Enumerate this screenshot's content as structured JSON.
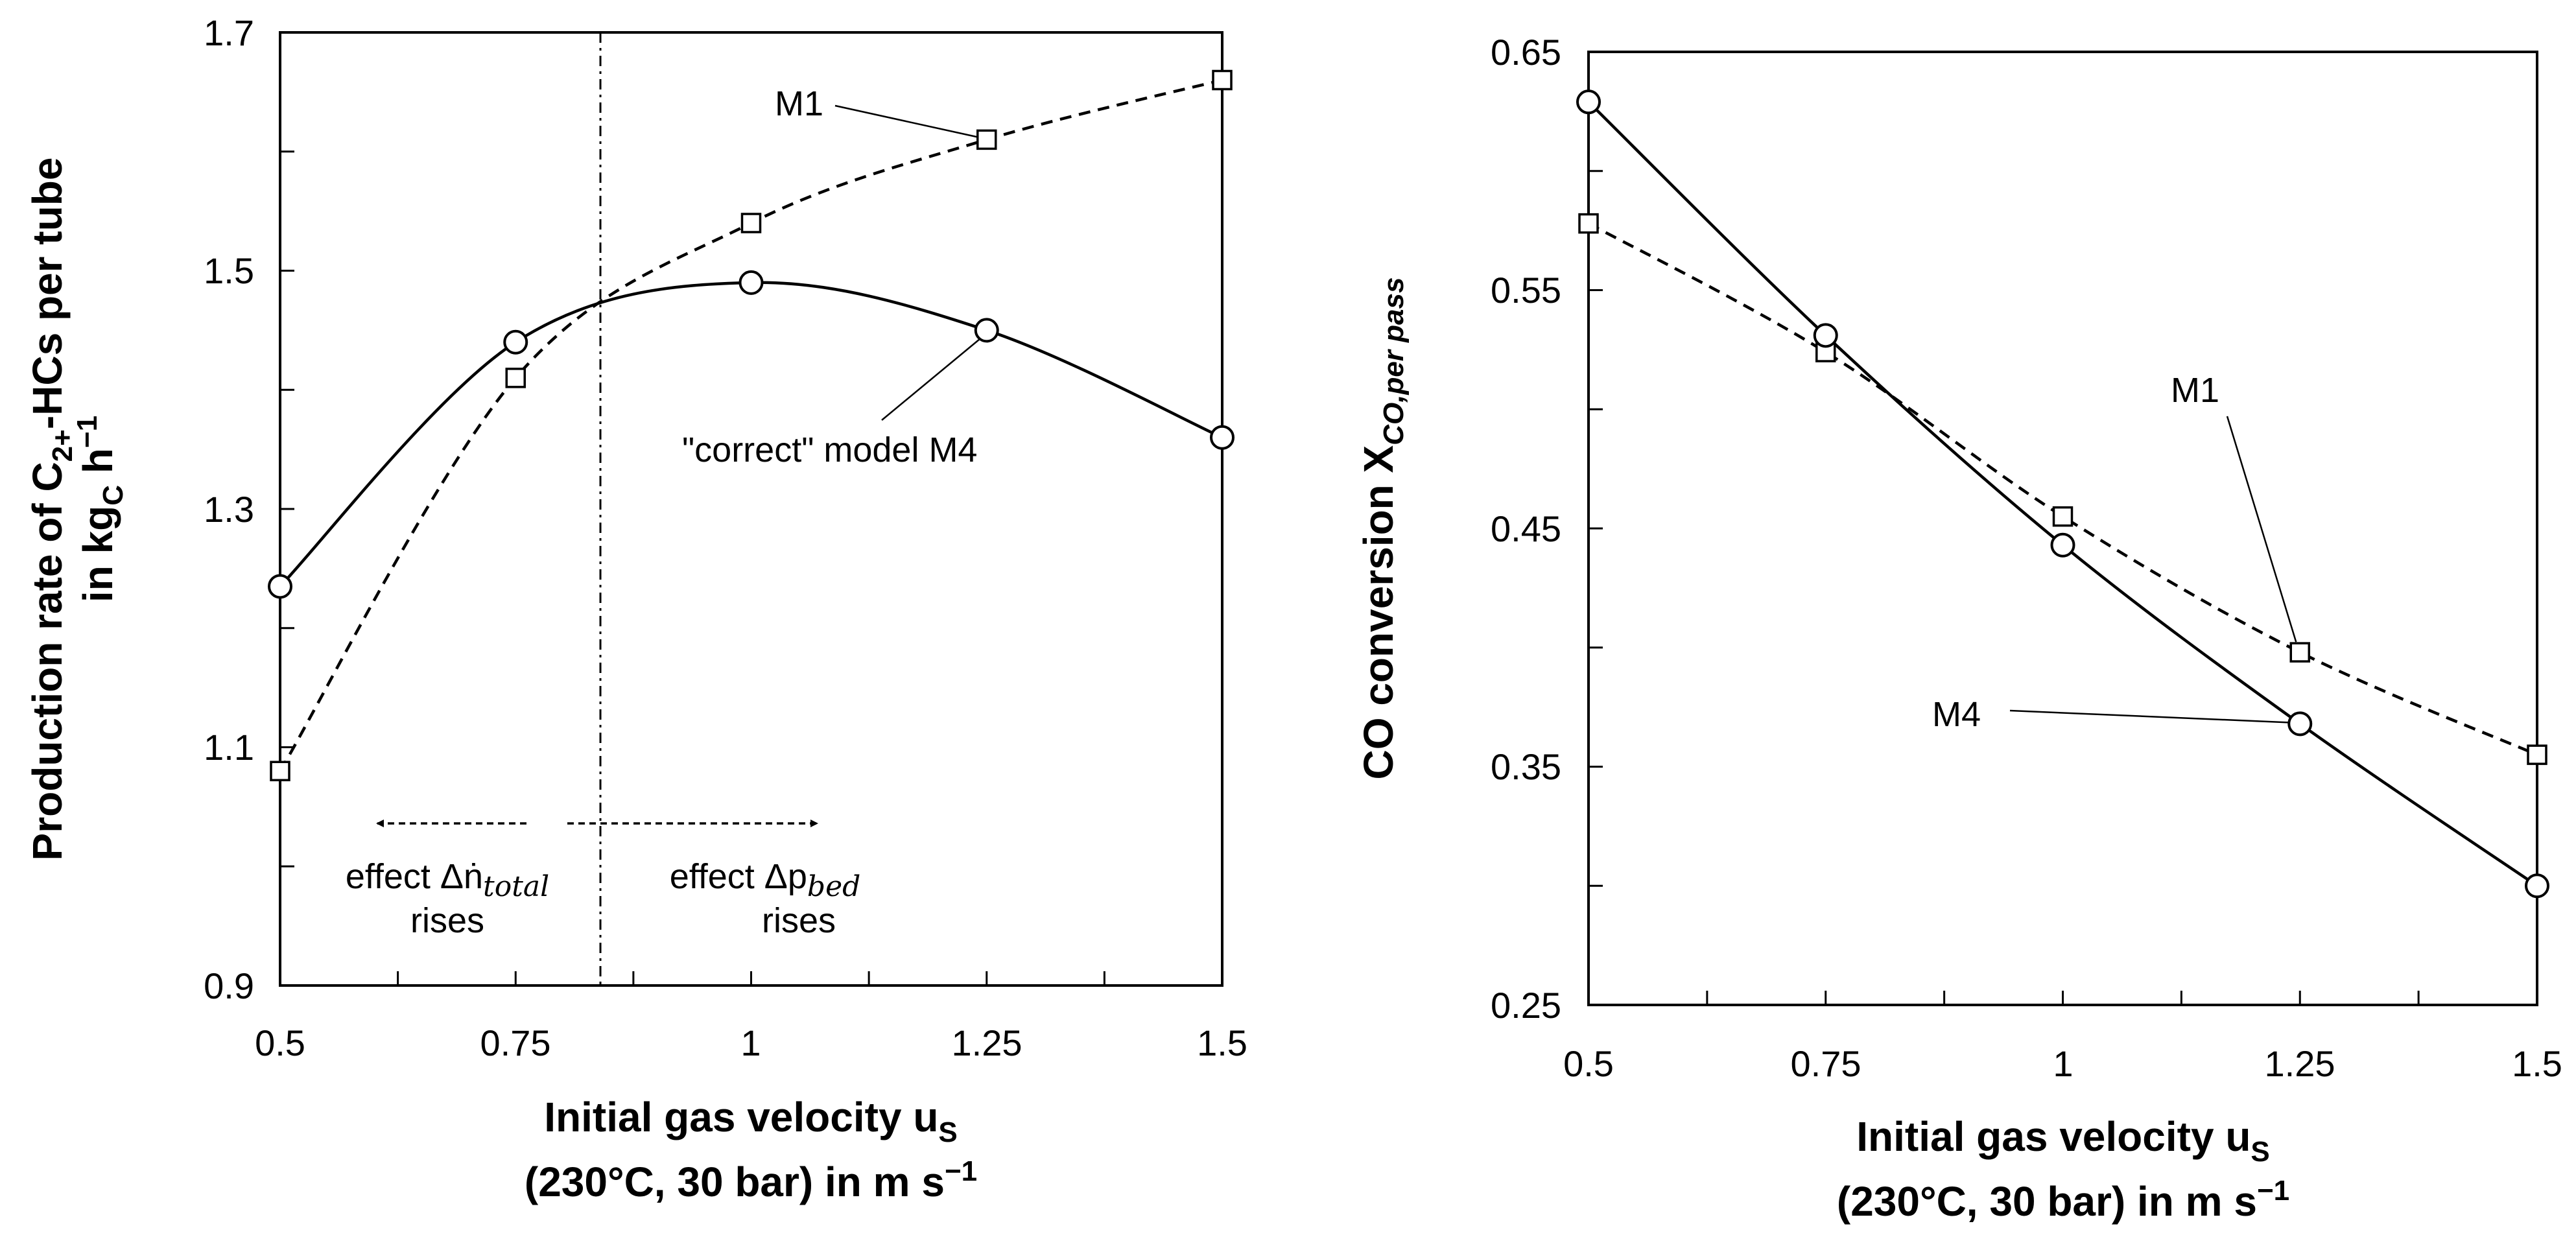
{
  "colors": {
    "line": "#000000",
    "marker_fill": "#ffffff",
    "background": "#ffffff"
  },
  "chart_data": [
    {
      "type": "line",
      "x": [
        0.5,
        0.75,
        1.0,
        1.25,
        1.5
      ],
      "xlim": [
        0.5,
        1.5
      ],
      "ylim": [
        0.9,
        1.7
      ],
      "x_tick_labels": [
        "0.5",
        "0.75",
        "1",
        "1.25",
        "1.5"
      ],
      "y_tick_labels": [
        "0.9",
        "1.1",
        "1.3",
        "1.5",
        "1.7"
      ],
      "xlabel_line1": "Initial gas velocity u",
      "xlabel_sub": "S",
      "xlabel_line2": "(230°C, 30 bar) in m s",
      "xlabel_sup": "−1",
      "ylabel_line1_a": "Production rate of C",
      "ylabel_line1_sub": "2+",
      "ylabel_line1_b": "-HCs per tube",
      "ylabel_line2_a": "in kg",
      "ylabel_line2_sub": "C",
      "ylabel_line2_b": " h",
      "ylabel_line2_sup": "−1",
      "series": [
        {
          "name": "M1",
          "values": [
            1.08,
            1.41,
            1.54,
            1.61,
            1.66
          ],
          "line_style": "dashed",
          "marker": "square"
        },
        {
          "name": "\"correct\" model M4",
          "values": [
            1.235,
            1.44,
            1.49,
            1.45,
            1.36
          ],
          "line_style": "solid",
          "marker": "circle"
        }
      ],
      "vertical_line_x": 0.84,
      "annotations": {
        "left_line1": "effect Δṅ",
        "left_sub": "total",
        "left_line2": "rises",
        "right_line1": "effect Δp",
        "right_sub": "bed",
        "right_line2": "rises"
      },
      "grid": false
    },
    {
      "type": "line",
      "x": [
        0.5,
        0.75,
        1.0,
        1.25,
        1.5
      ],
      "xlim": [
        0.5,
        1.5
      ],
      "ylim": [
        0.25,
        0.65
      ],
      "x_tick_labels": [
        "0.5",
        "0.75",
        "1",
        "1.25",
        "1.5"
      ],
      "y_tick_labels": [
        "0.25",
        "0.35",
        "0.45",
        "0.55",
        "0.65"
      ],
      "xlabel_line1": "Initial gas velocity u",
      "xlabel_sub": "S",
      "xlabel_line2": "(230°C, 30 bar) in m s",
      "xlabel_sup": "−1",
      "ylabel_a": "CO conversion X",
      "ylabel_sub": "CO,per pass",
      "series": [
        {
          "name": "M1",
          "values": [
            0.578,
            0.524,
            0.455,
            0.398,
            0.355
          ],
          "line_style": "dashed",
          "marker": "square"
        },
        {
          "name": "M4",
          "values": [
            0.629,
            0.531,
            0.443,
            0.368,
            0.3
          ],
          "line_style": "solid",
          "marker": "circle"
        }
      ],
      "grid": false
    }
  ]
}
